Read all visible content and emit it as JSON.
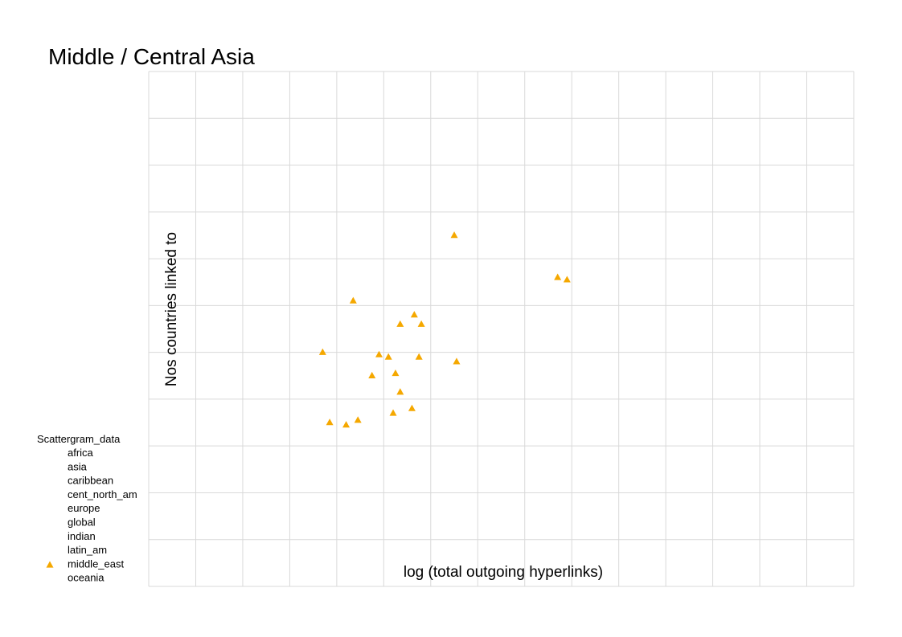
{
  "chart_data": {
    "type": "scatter",
    "title": "Middle / Central Asia",
    "xlabel": "log (total outgoing hyperlinks)",
    "ylabel": "Nos countries linked to",
    "grid": true,
    "xlim": [
      0,
      15
    ],
    "ylim": [
      0,
      11
    ],
    "marker": "triangle",
    "legend": {
      "title": "Scattergram_data",
      "position": "bottom-left",
      "entries": [
        {
          "label": "africa",
          "shown_marker": false
        },
        {
          "label": "asia",
          "shown_marker": false
        },
        {
          "label": "caribbean",
          "shown_marker": false
        },
        {
          "label": "cent_north_am",
          "shown_marker": false
        },
        {
          "label": "europe",
          "shown_marker": false
        },
        {
          "label": "global",
          "shown_marker": false
        },
        {
          "label": "indian",
          "shown_marker": false
        },
        {
          "label": "latin_am",
          "shown_marker": false
        },
        {
          "label": "middle_east",
          "shown_marker": true,
          "color": "#f5a800"
        },
        {
          "label": "oceania",
          "shown_marker": false
        }
      ]
    },
    "series": [
      {
        "name": "middle_east",
        "color": "#f5a800",
        "points": [
          {
            "x": 6.5,
            "y": 7.5
          },
          {
            "x": 8.7,
            "y": 6.6
          },
          {
            "x": 8.9,
            "y": 6.55
          },
          {
            "x": 4.35,
            "y": 6.1
          },
          {
            "x": 5.65,
            "y": 5.8
          },
          {
            "x": 5.35,
            "y": 5.6
          },
          {
            "x": 5.8,
            "y": 5.6
          },
          {
            "x": 3.7,
            "y": 5.0
          },
          {
            "x": 4.9,
            "y": 4.95
          },
          {
            "x": 5.1,
            "y": 4.9
          },
          {
            "x": 5.75,
            "y": 4.9
          },
          {
            "x": 6.55,
            "y": 4.8
          },
          {
            "x": 4.75,
            "y": 4.5
          },
          {
            "x": 5.25,
            "y": 4.55
          },
          {
            "x": 5.35,
            "y": 4.15
          },
          {
            "x": 5.6,
            "y": 3.8
          },
          {
            "x": 5.2,
            "y": 3.7
          },
          {
            "x": 3.85,
            "y": 3.5
          },
          {
            "x": 4.2,
            "y": 3.45
          },
          {
            "x": 4.45,
            "y": 3.55
          }
        ]
      }
    ]
  }
}
